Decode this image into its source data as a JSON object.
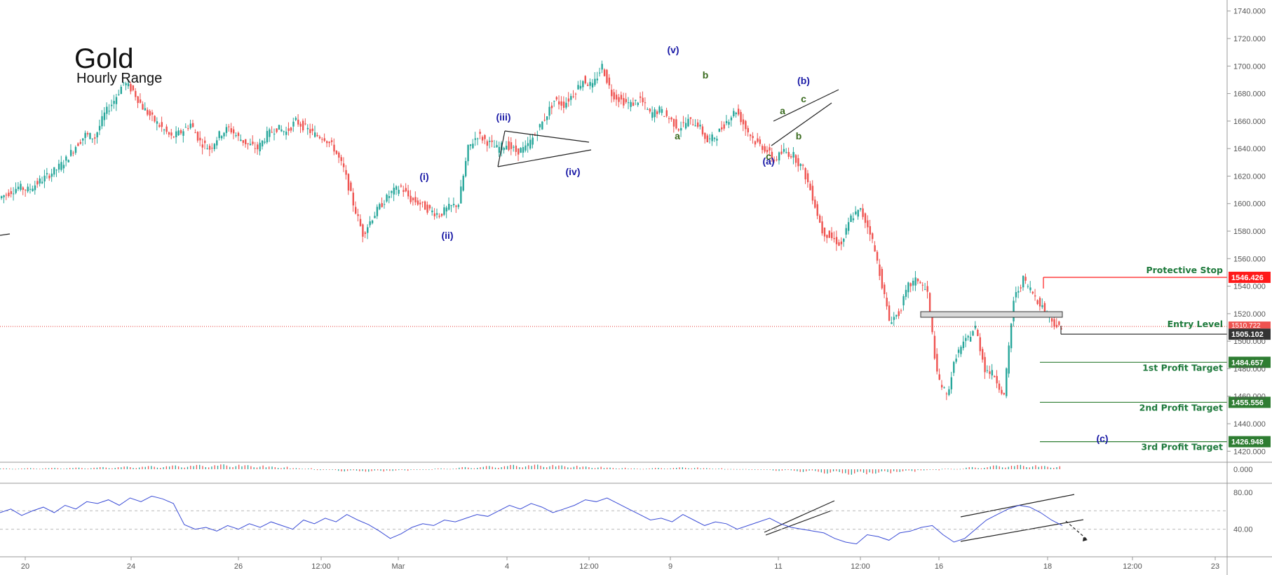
{
  "title": "Gold",
  "subtitle": "Hourly Range",
  "colors": {
    "up": "#26a69a",
    "down": "#ef5350",
    "wave_blue": "#1a1aa6",
    "wave_green": "#3a6b1f",
    "target_green": "#2e7d32",
    "stop_red": "#ff1a1a",
    "rsi": "#3a4cd6",
    "grid": "#e8e8e8"
  },
  "chart_data": [
    {
      "type": "line",
      "name": "price",
      "series": [
        {
          "x": [
            0,
            4,
            8,
            12,
            16,
            20,
            24,
            28,
            32,
            36,
            40,
            44,
            48,
            52,
            56,
            60,
            64,
            68,
            72,
            76,
            80,
            84,
            88,
            92,
            96,
            100,
            104,
            108,
            112,
            116,
            120,
            124,
            128,
            132,
            136,
            140,
            144,
            148,
            152,
            156,
            160,
            164,
            168,
            172,
            176,
            180,
            184,
            188,
            192,
            196,
            200,
            204,
            208,
            212,
            216,
            220,
            224,
            228,
            232,
            236,
            240,
            244,
            248,
            252,
            256,
            260,
            264,
            268,
            272,
            276,
            280,
            284,
            288,
            292,
            296,
            300,
            304,
            308,
            312,
            316,
            320,
            324,
            328,
            332,
            336,
            340,
            344,
            348,
            352,
            356,
            360,
            364,
            368,
            372,
            376,
            380,
            384,
            388,
            392,
            396,
            400,
            404,
            408,
            412,
            416,
            420,
            424,
            428,
            432,
            436,
            440,
            444
          ],
          "y": [
            1604,
            1608,
            1612,
            1610,
            1615,
            1620,
            1625,
            1632,
            1642,
            1650,
            1648,
            1665,
            1675,
            1688,
            1682,
            1670,
            1662,
            1655,
            1648,
            1652,
            1658,
            1645,
            1640,
            1650,
            1655,
            1648,
            1643,
            1640,
            1650,
            1655,
            1652,
            1660,
            1655,
            1650,
            1648,
            1640,
            1625,
            1600,
            1578,
            1590,
            1600,
            1608,
            1612,
            1603,
            1600,
            1595,
            1592,
            1597,
            1600,
            1640,
            1650,
            1645,
            1640,
            1643,
            1638,
            1640,
            1650,
            1662,
            1675,
            1672,
            1680,
            1690,
            1685,
            1700,
            1680,
            1675,
            1672,
            1676,
            1665,
            1668,
            1662,
            1655,
            1660,
            1658,
            1645,
            1650,
            1660,
            1668,
            1655,
            1645,
            1640,
            1632,
            1638,
            1635,
            1625,
            1605,
            1580,
            1575,
            1570,
            1590,
            1595,
            1580,
            1550,
            1515,
            1520,
            1540,
            1545,
            1535,
            1475,
            1460,
            1490,
            1500,
            1510,
            1480,
            1475,
            1460,
            1530,
            1545,
            1535,
            1525,
            1515,
            1508
          ]
        }
      ],
      "x_tick_labels": [
        "20",
        "24",
        "26",
        "12:00",
        "Mar",
        "4",
        "12:00",
        "9",
        "11",
        "12:00",
        "16",
        "18",
        "12:00",
        "23"
      ],
      "y_tick_labels": [
        "1740.000",
        "1720.000",
        "1700.000",
        "1680.000",
        "1660.000",
        "1640.000",
        "1620.000",
        "1600.000",
        "1580.000",
        "1560.000",
        "1540.000",
        "1520.000",
        "1500.000",
        "1480.000",
        "1460.000",
        "1440.000",
        "1420.000"
      ],
      "ylim": [
        1412,
        1747
      ],
      "levels": [
        {
          "label": "Protective Stop",
          "value": "1546.426",
          "kind": "stop"
        },
        {
          "label": "Entry Level",
          "value": "1505.102",
          "kind": "entry"
        },
        {
          "label": "1st Profit Target",
          "value": "1484.657",
          "kind": "target"
        },
        {
          "label": "2nd Profit Target",
          "value": "1455.556",
          "kind": "target"
        },
        {
          "label": "3rd Profit Target",
          "value": "1426.948",
          "kind": "target"
        }
      ],
      "current_price": "1510.722",
      "wave_labels": [
        "(i)",
        "(ii)",
        "(iii)",
        "(iv)",
        "(v)",
        "a",
        "b",
        "(a)",
        "a",
        "b",
        "c",
        "c",
        "(b)",
        "(c)"
      ]
    },
    {
      "type": "bar",
      "name": "awesome-oscillator",
      "y_tick_labels": [
        "0.000"
      ],
      "values": [
        0.3,
        0.4,
        0.5,
        0.6,
        0.8,
        1.0,
        1.2,
        1.4,
        1.6,
        1.8,
        1.5,
        1.0,
        0.4,
        -0.3,
        -0.8,
        -0.9,
        -0.6,
        -0.2,
        0.3,
        0.8,
        1.2,
        1.6,
        1.7,
        1.4,
        1.0,
        0.6,
        0.3,
        0.5,
        0.7,
        0.4,
        0.1,
        -0.2,
        -0.6,
        -1.0,
        -1.6,
        -2.0,
        -1.6,
        -1.0,
        -0.4,
        0.2,
        0.8,
        1.4,
        1.6,
        1.2
      ]
    },
    {
      "type": "line",
      "name": "rsi",
      "y_tick_labels": [
        "80.00",
        "40.00"
      ],
      "ylim": [
        10,
        90
      ],
      "series": [
        {
          "values": [
            58,
            62,
            55,
            60,
            64,
            58,
            66,
            62,
            70,
            68,
            72,
            66,
            74,
            70,
            76,
            73,
            68,
            45,
            40,
            42,
            38,
            44,
            40,
            46,
            42,
            48,
            44,
            40,
            50,
            46,
            52,
            48,
            56,
            50,
            45,
            38,
            30,
            35,
            42,
            46,
            44,
            50,
            48,
            52,
            56,
            54,
            60,
            66,
            62,
            68,
            64,
            58,
            62,
            66,
            72,
            70,
            74,
            68,
            62,
            56,
            50,
            52,
            48,
            56,
            50,
            44,
            48,
            46,
            40,
            44,
            48,
            52,
            46,
            42,
            40,
            38,
            36,
            30,
            26,
            24,
            34,
            32,
            28,
            36,
            38,
            42,
            44,
            34,
            26,
            30,
            40,
            50,
            56,
            62,
            66,
            64,
            58,
            50,
            44
          ]
        }
      ]
    }
  ]
}
